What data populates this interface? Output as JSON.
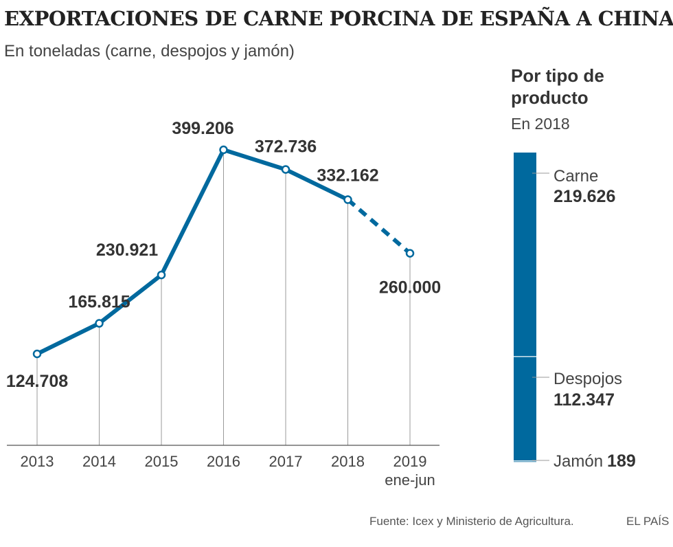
{
  "header": {
    "title": "EXPORTACIONES DE CARNE PORCINA DE ESPAÑA A CHINA",
    "subtitle": "En toneladas (carne, despojos y jamón)"
  },
  "chart_data": [
    {
      "type": "line",
      "categories": [
        "2013",
        "2014",
        "2015",
        "2016",
        "2017",
        "2018",
        "2019"
      ],
      "category_sublabels": [
        "",
        "",
        "",
        "",
        "",
        "",
        "ene-jun"
      ],
      "values": [
        124708,
        165815,
        230921,
        399206,
        372736,
        332162,
        260000
      ],
      "value_labels": [
        "124.708",
        "165.815",
        "230.921",
        "399.206",
        "372.736",
        "332.162",
        "260.000"
      ],
      "dashed_last_segment": true,
      "ylim": [
        0,
        400000
      ],
      "grid": false,
      "color": "#00699e"
    },
    {
      "type": "bar",
      "stacked": true,
      "title": "Por tipo de producto",
      "subtitle": "En 2018",
      "segments": [
        {
          "name": "Carne",
          "value": 219626,
          "value_label": "219.626"
        },
        {
          "name": "Despojos",
          "value": 112347,
          "value_label": "112.347"
        },
        {
          "name": "Jamón",
          "value": 189,
          "value_label": "189"
        }
      ],
      "color": "#00699e"
    }
  ],
  "footer": {
    "source": "Fuente: Icex y Ministerio de Agricultura.",
    "brand": "EL PAÍS"
  }
}
